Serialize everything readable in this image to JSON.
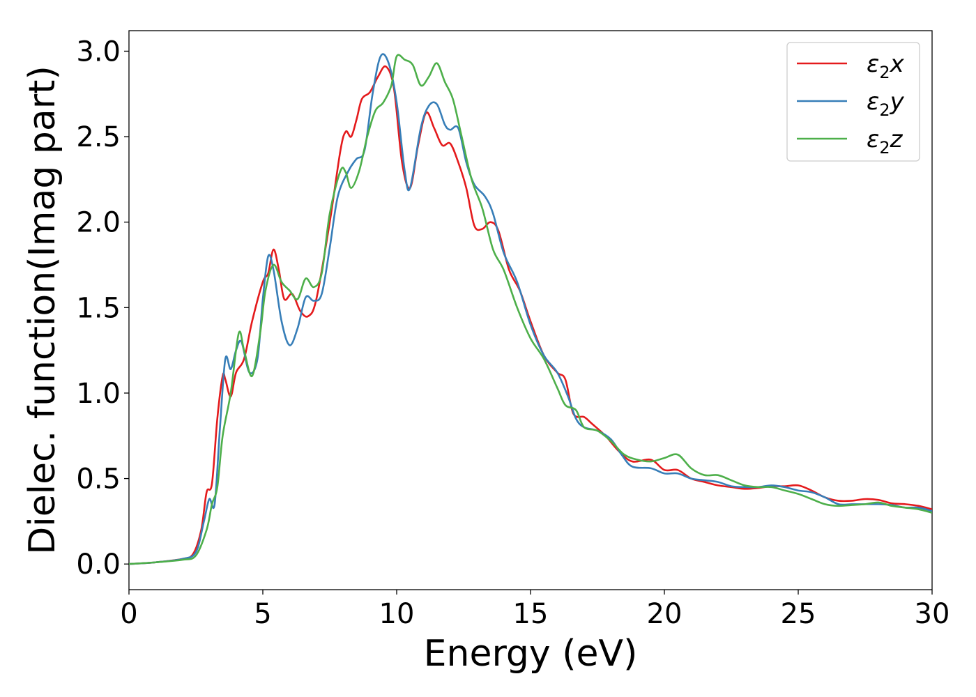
{
  "chart_data": {
    "type": "line",
    "xlabel": "Energy (eV)",
    "ylabel": "Dielec. function(Imag part)",
    "xlim": [
      0,
      30
    ],
    "ylim": [
      -0.15,
      3.12
    ],
    "x_ticks": [
      0,
      5,
      10,
      15,
      20,
      25,
      30
    ],
    "y_ticks": [
      0.0,
      0.5,
      1.0,
      1.5,
      2.0,
      2.5,
      3.0
    ],
    "x_tick_labels": [
      "0",
      "5",
      "10",
      "15",
      "20",
      "25",
      "30"
    ],
    "y_tick_labels": [
      "0.0",
      "0.5",
      "1.0",
      "1.5",
      "2.0",
      "2.5",
      "3.0"
    ],
    "grid": false,
    "legend_position": "top-right",
    "series": [
      {
        "name": "ε₂x",
        "legend_base": "ε",
        "legend_sub": "2",
        "legend_suffix": "x",
        "color": "#e41a1c",
        "points": [
          [
            0,
            0
          ],
          [
            1,
            0.01
          ],
          [
            2,
            0.03
          ],
          [
            2.4,
            0.06
          ],
          [
            2.7,
            0.2
          ],
          [
            2.9,
            0.42
          ],
          [
            3.1,
            0.47
          ],
          [
            3.3,
            0.85
          ],
          [
            3.5,
            1.1
          ],
          [
            3.6,
            1.08
          ],
          [
            3.8,
            0.98
          ],
          [
            4.0,
            1.12
          ],
          [
            4.3,
            1.2
          ],
          [
            4.6,
            1.42
          ],
          [
            5.0,
            1.65
          ],
          [
            5.2,
            1.7
          ],
          [
            5.4,
            1.84
          ],
          [
            5.6,
            1.72
          ],
          [
            5.8,
            1.55
          ],
          [
            6.1,
            1.58
          ],
          [
            6.4,
            1.48
          ],
          [
            6.7,
            1.45
          ],
          [
            7.0,
            1.55
          ],
          [
            7.5,
            2.0
          ],
          [
            7.9,
            2.42
          ],
          [
            8.1,
            2.53
          ],
          [
            8.3,
            2.5
          ],
          [
            8.5,
            2.6
          ],
          [
            8.7,
            2.72
          ],
          [
            9.0,
            2.76
          ],
          [
            9.3,
            2.85
          ],
          [
            9.6,
            2.91
          ],
          [
            9.9,
            2.78
          ],
          [
            10.2,
            2.35
          ],
          [
            10.5,
            2.2
          ],
          [
            10.8,
            2.45
          ],
          [
            11.1,
            2.64
          ],
          [
            11.4,
            2.55
          ],
          [
            11.7,
            2.45
          ],
          [
            12.0,
            2.46
          ],
          [
            12.3,
            2.35
          ],
          [
            12.6,
            2.2
          ],
          [
            12.9,
            1.98
          ],
          [
            13.2,
            1.96
          ],
          [
            13.5,
            2.0
          ],
          [
            13.8,
            1.95
          ],
          [
            14.2,
            1.72
          ],
          [
            14.6,
            1.6
          ],
          [
            15.0,
            1.42
          ],
          [
            15.5,
            1.22
          ],
          [
            16.0,
            1.12
          ],
          [
            16.3,
            1.08
          ],
          [
            16.6,
            0.88
          ],
          [
            17.0,
            0.86
          ],
          [
            17.3,
            0.82
          ],
          [
            17.8,
            0.75
          ],
          [
            18.3,
            0.66
          ],
          [
            18.8,
            0.6
          ],
          [
            19.5,
            0.61
          ],
          [
            20.0,
            0.55
          ],
          [
            20.5,
            0.55
          ],
          [
            21.0,
            0.5
          ],
          [
            21.5,
            0.48
          ],
          [
            22.0,
            0.46
          ],
          [
            22.5,
            0.45
          ],
          [
            23.0,
            0.44
          ],
          [
            23.5,
            0.445
          ],
          [
            24.0,
            0.455
          ],
          [
            24.5,
            0.455
          ],
          [
            25.0,
            0.46
          ],
          [
            25.5,
            0.43
          ],
          [
            26.0,
            0.39
          ],
          [
            26.5,
            0.37
          ],
          [
            27.0,
            0.37
          ],
          [
            27.5,
            0.38
          ],
          [
            28.0,
            0.375
          ],
          [
            28.5,
            0.355
          ],
          [
            29.0,
            0.35
          ],
          [
            29.5,
            0.34
          ],
          [
            30,
            0.32
          ]
        ]
      },
      {
        "name": "ε₂y",
        "legend_base": "ε",
        "legend_sub": "2",
        "legend_suffix": "y",
        "color": "#377eb8",
        "points": [
          [
            0,
            0
          ],
          [
            1,
            0.01
          ],
          [
            2,
            0.03
          ],
          [
            2.5,
            0.07
          ],
          [
            2.8,
            0.25
          ],
          [
            3.0,
            0.38
          ],
          [
            3.2,
            0.35
          ],
          [
            3.4,
            0.8
          ],
          [
            3.6,
            1.2
          ],
          [
            3.8,
            1.14
          ],
          [
            4.0,
            1.25
          ],
          [
            4.2,
            1.3
          ],
          [
            4.5,
            1.12
          ],
          [
            4.8,
            1.2
          ],
          [
            5.0,
            1.55
          ],
          [
            5.2,
            1.8
          ],
          [
            5.4,
            1.72
          ],
          [
            5.7,
            1.42
          ],
          [
            6.0,
            1.28
          ],
          [
            6.3,
            1.38
          ],
          [
            6.6,
            1.56
          ],
          [
            6.9,
            1.54
          ],
          [
            7.2,
            1.58
          ],
          [
            7.5,
            1.85
          ],
          [
            7.8,
            2.15
          ],
          [
            8.2,
            2.3
          ],
          [
            8.5,
            2.37
          ],
          [
            8.8,
            2.42
          ],
          [
            9.1,
            2.75
          ],
          [
            9.4,
            2.97
          ],
          [
            9.7,
            2.93
          ],
          [
            10.0,
            2.7
          ],
          [
            10.3,
            2.3
          ],
          [
            10.5,
            2.2
          ],
          [
            10.9,
            2.55
          ],
          [
            11.2,
            2.68
          ],
          [
            11.5,
            2.69
          ],
          [
            11.8,
            2.57
          ],
          [
            12.0,
            2.54
          ],
          [
            12.3,
            2.55
          ],
          [
            12.6,
            2.35
          ],
          [
            12.9,
            2.22
          ],
          [
            13.3,
            2.15
          ],
          [
            13.6,
            2.05
          ],
          [
            14.0,
            1.82
          ],
          [
            14.5,
            1.65
          ],
          [
            15.0,
            1.4
          ],
          [
            15.5,
            1.22
          ],
          [
            16.0,
            1.12
          ],
          [
            16.4,
            0.98
          ],
          [
            16.7,
            0.85
          ],
          [
            17.0,
            0.8
          ],
          [
            17.5,
            0.78
          ],
          [
            18.0,
            0.73
          ],
          [
            18.4,
            0.64
          ],
          [
            18.8,
            0.57
          ],
          [
            19.5,
            0.56
          ],
          [
            20.0,
            0.53
          ],
          [
            20.5,
            0.53
          ],
          [
            21.0,
            0.5
          ],
          [
            21.5,
            0.49
          ],
          [
            22.0,
            0.48
          ],
          [
            22.5,
            0.455
          ],
          [
            23.0,
            0.45
          ],
          [
            23.5,
            0.45
          ],
          [
            24.0,
            0.46
          ],
          [
            24.5,
            0.45
          ],
          [
            25.0,
            0.43
          ],
          [
            25.5,
            0.42
          ],
          [
            26.0,
            0.39
          ],
          [
            26.5,
            0.35
          ],
          [
            27.0,
            0.35
          ],
          [
            27.5,
            0.35
          ],
          [
            28.0,
            0.35
          ],
          [
            28.5,
            0.345
          ],
          [
            29.0,
            0.33
          ],
          [
            29.5,
            0.33
          ],
          [
            30,
            0.31
          ]
        ]
      },
      {
        "name": "ε₂z",
        "legend_base": "ε",
        "legend_sub": "2",
        "legend_suffix": "z",
        "color": "#4daf4a",
        "points": [
          [
            0,
            0
          ],
          [
            1,
            0.01
          ],
          [
            2,
            0.025
          ],
          [
            2.5,
            0.05
          ],
          [
            2.9,
            0.2
          ],
          [
            3.1,
            0.35
          ],
          [
            3.3,
            0.45
          ],
          [
            3.5,
            0.75
          ],
          [
            3.8,
            1.0
          ],
          [
            4.1,
            1.35
          ],
          [
            4.3,
            1.25
          ],
          [
            4.6,
            1.1
          ],
          [
            4.9,
            1.35
          ],
          [
            5.1,
            1.6
          ],
          [
            5.4,
            1.75
          ],
          [
            5.7,
            1.65
          ],
          [
            6.0,
            1.6
          ],
          [
            6.3,
            1.55
          ],
          [
            6.6,
            1.67
          ],
          [
            6.9,
            1.62
          ],
          [
            7.2,
            1.7
          ],
          [
            7.5,
            2.05
          ],
          [
            7.9,
            2.3
          ],
          [
            8.1,
            2.29
          ],
          [
            8.3,
            2.2
          ],
          [
            8.6,
            2.3
          ],
          [
            8.9,
            2.5
          ],
          [
            9.2,
            2.65
          ],
          [
            9.5,
            2.7
          ],
          [
            9.8,
            2.8
          ],
          [
            10.0,
            2.97
          ],
          [
            10.3,
            2.95
          ],
          [
            10.6,
            2.92
          ],
          [
            10.9,
            2.8
          ],
          [
            11.2,
            2.85
          ],
          [
            11.5,
            2.93
          ],
          [
            11.8,
            2.82
          ],
          [
            12.1,
            2.72
          ],
          [
            12.4,
            2.52
          ],
          [
            12.8,
            2.25
          ],
          [
            13.2,
            2.08
          ],
          [
            13.6,
            1.84
          ],
          [
            14.0,
            1.72
          ],
          [
            14.5,
            1.5
          ],
          [
            15.0,
            1.32
          ],
          [
            15.5,
            1.2
          ],
          [
            16.0,
            1.03
          ],
          [
            16.3,
            0.93
          ],
          [
            16.7,
            0.9
          ],
          [
            17.0,
            0.8
          ],
          [
            17.5,
            0.78
          ],
          [
            18.0,
            0.72
          ],
          [
            18.5,
            0.64
          ],
          [
            19.0,
            0.61
          ],
          [
            19.5,
            0.6
          ],
          [
            20.0,
            0.62
          ],
          [
            20.5,
            0.64
          ],
          [
            21.0,
            0.56
          ],
          [
            21.5,
            0.52
          ],
          [
            22.0,
            0.52
          ],
          [
            22.5,
            0.49
          ],
          [
            23.0,
            0.46
          ],
          [
            23.5,
            0.45
          ],
          [
            24.0,
            0.45
          ],
          [
            24.5,
            0.43
          ],
          [
            25.0,
            0.41
          ],
          [
            25.5,
            0.38
          ],
          [
            26.0,
            0.35
          ],
          [
            26.5,
            0.34
          ],
          [
            27.0,
            0.345
          ],
          [
            27.5,
            0.35
          ],
          [
            28.0,
            0.36
          ],
          [
            28.5,
            0.34
          ],
          [
            29.0,
            0.33
          ],
          [
            29.5,
            0.32
          ],
          [
            30,
            0.3
          ]
        ]
      }
    ]
  }
}
